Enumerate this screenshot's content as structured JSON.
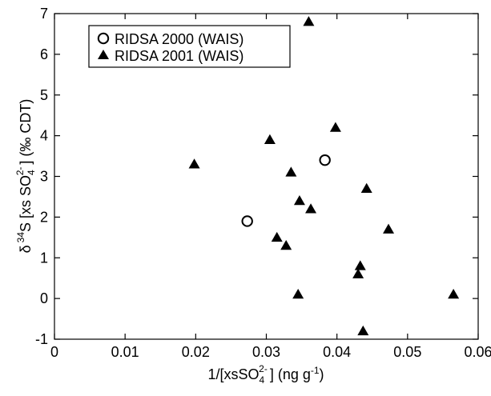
{
  "chart_data": {
    "type": "scatter",
    "xlim": [
      0,
      0.06
    ],
    "ylim": [
      -1,
      7
    ],
    "x_ticks": [
      0,
      0.01,
      0.02,
      0.03,
      0.04,
      0.05,
      0.06
    ],
    "x_tick_labels": [
      "0",
      "0.01",
      "0.02",
      "0.03",
      "0.04",
      "0.05",
      "0.06"
    ],
    "y_ticks": [
      -1,
      0,
      1,
      2,
      3,
      4,
      5,
      6,
      7
    ],
    "y_tick_labels": [
      "-1",
      "0",
      "1",
      "2",
      "3",
      "4",
      "5",
      "6",
      "7"
    ],
    "xlabel": {
      "prefix": "1/[xsSO",
      "sub": "4",
      "sup": "2-",
      "suffix": "] (ng g",
      "unit_sup": "-1",
      "close": ")"
    },
    "ylabel": {
      "delta": "δ",
      "sup34": "34",
      "prefix": "S [xs SO",
      "sub": "4",
      "sup": "2-",
      "suffix": "] (‰ CDT)"
    },
    "legend_position": "top-left",
    "grid": false,
    "series": [
      {
        "name": "RIDSA 2000 (WAIS)",
        "marker": "open-circle",
        "color": "#000000",
        "points": [
          {
            "x": 0.0273,
            "y": 1.9
          },
          {
            "x": 0.0383,
            "y": 3.4
          }
        ]
      },
      {
        "name": "RIDSA 2001 (WAIS)",
        "marker": "filled-triangle",
        "color": "#000000",
        "points": [
          {
            "x": 0.0198,
            "y": 3.3
          },
          {
            "x": 0.0305,
            "y": 3.9
          },
          {
            "x": 0.0315,
            "y": 1.5
          },
          {
            "x": 0.0328,
            "y": 1.3
          },
          {
            "x": 0.0335,
            "y": 3.1
          },
          {
            "x": 0.0345,
            "y": 0.1
          },
          {
            "x": 0.0347,
            "y": 2.4
          },
          {
            "x": 0.036,
            "y": 6.8
          },
          {
            "x": 0.0363,
            "y": 2.2
          },
          {
            "x": 0.0398,
            "y": 4.2
          },
          {
            "x": 0.043,
            "y": 0.6
          },
          {
            "x": 0.0433,
            "y": 0.8
          },
          {
            "x": 0.0437,
            "y": -0.8
          },
          {
            "x": 0.0442,
            "y": 2.7
          },
          {
            "x": 0.0473,
            "y": 1.7
          },
          {
            "x": 0.0565,
            "y": 0.1
          }
        ]
      }
    ]
  }
}
